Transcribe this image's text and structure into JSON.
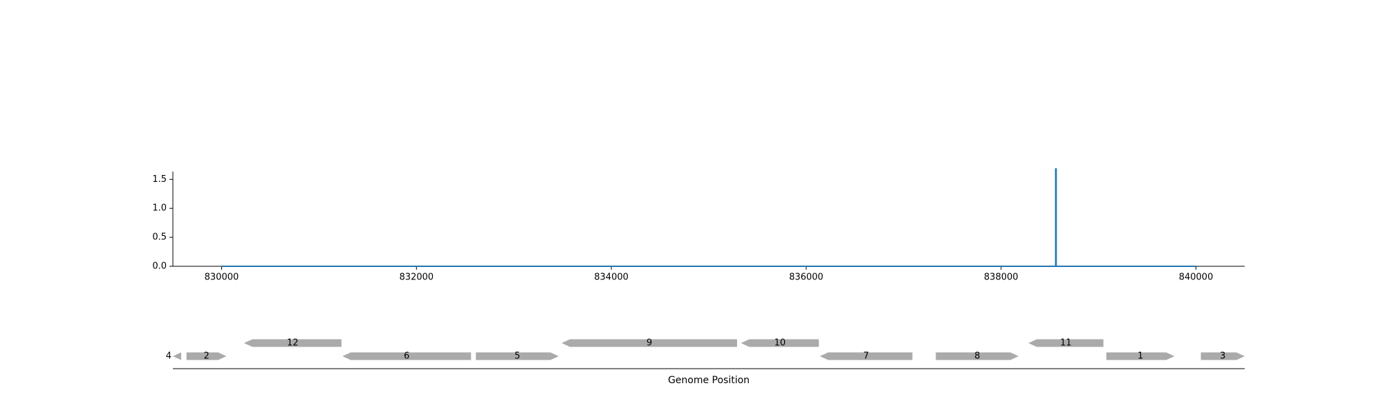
{
  "chart_data": [
    {
      "type": "line",
      "title": "",
      "xlabel": "",
      "ylabel": "",
      "xlim": [
        829500,
        840500
      ],
      "ylim": [
        0,
        1.85
      ],
      "xticks": [
        830000,
        832000,
        834000,
        836000,
        838000,
        840000
      ],
      "xtick_labels": [
        "830000",
        "832000",
        "834000",
        "836000",
        "838000",
        "840000"
      ],
      "yticks": [
        0.0,
        0.5,
        1.0,
        1.5
      ],
      "ytick_labels": [
        "0.0",
        "0.5",
        "1.0",
        "1.5"
      ],
      "grid": false,
      "series": [
        {
          "color": "#1f77b4",
          "x": [
            830000,
            838560,
            838560,
            838565,
            838565,
            840000
          ],
          "y": [
            0,
            0,
            1.68,
            1.68,
            0,
            0
          ]
        }
      ]
    },
    {
      "type": "gene-track",
      "xlabel": "Genome Position",
      "xlim": [
        829500,
        840500
      ],
      "color": "#aaaaaa",
      "genes": [
        {
          "label": "4",
          "start": 829500,
          "end": 829580,
          "strand": -1,
          "row": 0
        },
        {
          "label": "2",
          "start": 829640,
          "end": 830050,
          "strand": 1,
          "row": 0
        },
        {
          "label": "12",
          "start": 830230,
          "end": 831230,
          "strand": -1,
          "row": 1
        },
        {
          "label": "6",
          "start": 831240,
          "end": 832560,
          "strand": -1,
          "row": 0
        },
        {
          "label": "5",
          "start": 832610,
          "end": 833460,
          "strand": 1,
          "row": 0
        },
        {
          "label": "9",
          "start": 833490,
          "end": 835290,
          "strand": -1,
          "row": 1
        },
        {
          "label": "10",
          "start": 835330,
          "end": 836130,
          "strand": -1,
          "row": 1
        },
        {
          "label": "7",
          "start": 836140,
          "end": 837090,
          "strand": -1,
          "row": 0
        },
        {
          "label": "8",
          "start": 837330,
          "end": 838180,
          "strand": 1,
          "row": 0
        },
        {
          "label": "11",
          "start": 838280,
          "end": 839050,
          "strand": -1,
          "row": 1
        },
        {
          "label": "1",
          "start": 839080,
          "end": 839780,
          "strand": 1,
          "row": 0
        },
        {
          "label": "3",
          "start": 840050,
          "end": 840500,
          "strand": 1,
          "row": 0
        }
      ]
    }
  ]
}
